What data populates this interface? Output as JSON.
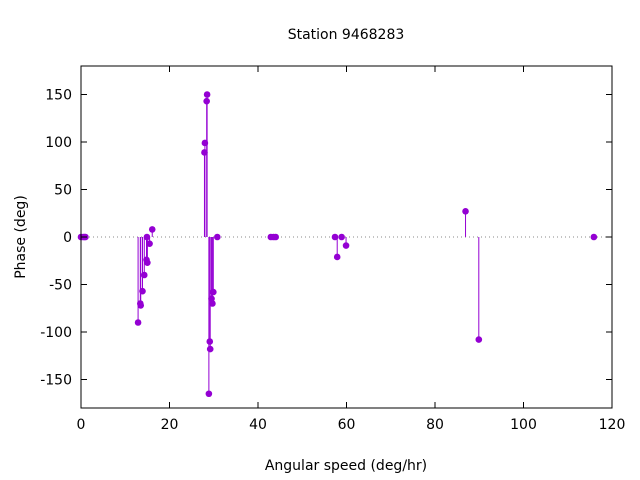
{
  "chart_data": {
    "type": "scatter",
    "style": "impulses-with-points",
    "title": "Station 9468283",
    "xlabel": "Angular speed (deg/hr)",
    "ylabel": "Phase (deg)",
    "xlim": [
      0,
      120
    ],
    "ylim": [
      -180,
      180
    ],
    "xticks": [
      0,
      20,
      40,
      60,
      80,
      100,
      120
    ],
    "yticks": [
      -150,
      -100,
      -50,
      0,
      50,
      100,
      150
    ],
    "grid": false,
    "zero_line": "dotted",
    "color": "#9400d3",
    "points": [
      {
        "x": 0.0,
        "y": 0
      },
      {
        "x": 0.5,
        "y": 0
      },
      {
        "x": 0.8,
        "y": 0
      },
      {
        "x": 1.0,
        "y": 0
      },
      {
        "x": 12.9,
        "y": -90
      },
      {
        "x": 13.4,
        "y": -70
      },
      {
        "x": 13.5,
        "y": -72
      },
      {
        "x": 13.9,
        "y": -57
      },
      {
        "x": 14.3,
        "y": -40
      },
      {
        "x": 14.8,
        "y": -24
      },
      {
        "x": 14.9,
        "y": 0
      },
      {
        "x": 15.0,
        "y": -27
      },
      {
        "x": 15.5,
        "y": -7
      },
      {
        "x": 16.1,
        "y": 8
      },
      {
        "x": 27.9,
        "y": 89
      },
      {
        "x": 28.0,
        "y": 99
      },
      {
        "x": 28.4,
        "y": 143
      },
      {
        "x": 28.5,
        "y": 150
      },
      {
        "x": 28.9,
        "y": -165
      },
      {
        "x": 29.1,
        "y": -110
      },
      {
        "x": 29.2,
        "y": -118
      },
      {
        "x": 29.5,
        "y": -65
      },
      {
        "x": 29.7,
        "y": -70
      },
      {
        "x": 29.9,
        "y": -58
      },
      {
        "x": 30.8,
        "y": 0
      },
      {
        "x": 42.9,
        "y": 0
      },
      {
        "x": 43.5,
        "y": 0
      },
      {
        "x": 44.0,
        "y": 0
      },
      {
        "x": 57.4,
        "y": 0
      },
      {
        "x": 57.9,
        "y": -21
      },
      {
        "x": 58.9,
        "y": 0
      },
      {
        "x": 59.9,
        "y": -9
      },
      {
        "x": 86.9,
        "y": 27
      },
      {
        "x": 89.9,
        "y": -108
      },
      {
        "x": 115.9,
        "y": 0
      }
    ]
  }
}
